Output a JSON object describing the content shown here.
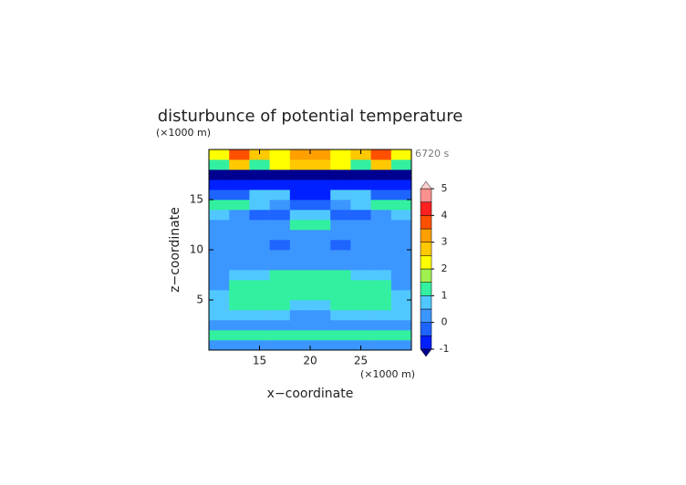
{
  "chart_data": {
    "type": "contour",
    "title": "disturbunce of potential temperature",
    "time_label": "6720 s",
    "x_label": "x−coordinate",
    "y_label": "z−coordinate",
    "x_unit": "(×1000 m)",
    "y_unit": "(×1000 m)",
    "xlim": [
      10,
      30
    ],
    "ylim": [
      0,
      20
    ],
    "xticks": [
      15,
      20,
      25
    ],
    "yticks": [
      5,
      10,
      15
    ],
    "x": [
      11,
      13,
      15,
      17,
      19,
      21,
      23,
      25,
      27,
      29
    ],
    "y": [
      0.5,
      1.5,
      2.5,
      3.5,
      4.5,
      5.5,
      6.5,
      7.5,
      8.5,
      9.5,
      10.5,
      11.5,
      12.5,
      13.5,
      14.5,
      15.5,
      16.5,
      17.5,
      18.5,
      19.5
    ],
    "z": [
      [
        0.3,
        0.3,
        0.3,
        0.3,
        0.3,
        0.3,
        0.3,
        0.3,
        0.3,
        0.3
      ],
      [
        1.2,
        1.2,
        1.2,
        1.2,
        1.2,
        1.2,
        1.2,
        1.2,
        1.2,
        1.2
      ],
      [
        0.3,
        0.3,
        0.3,
        0.3,
        0.3,
        0.3,
        0.3,
        0.3,
        0.3,
        0.3
      ],
      [
        0.7,
        0.7,
        0.7,
        0.7,
        0.3,
        0.3,
        0.7,
        0.7,
        0.7,
        0.7
      ],
      [
        0.7,
        1.2,
        1.2,
        1.2,
        0.7,
        0.7,
        1.2,
        1.2,
        1.2,
        0.7
      ],
      [
        0.7,
        1.2,
        1.2,
        1.2,
        1.2,
        1.2,
        1.2,
        1.2,
        1.2,
        0.7
      ],
      [
        0.3,
        1.2,
        1.2,
        1.2,
        1.2,
        1.2,
        1.2,
        1.2,
        1.2,
        0.3
      ],
      [
        0.3,
        0.7,
        0.7,
        1.2,
        1.2,
        1.2,
        1.2,
        0.7,
        0.7,
        0.3
      ],
      [
        0.3,
        0.3,
        0.3,
        0.3,
        0.3,
        0.3,
        0.3,
        0.3,
        0.3,
        0.3
      ],
      [
        0.3,
        0.3,
        0.3,
        0.3,
        0.3,
        0.3,
        0.3,
        0.3,
        0.3,
        0.3
      ],
      [
        0.3,
        0.3,
        0.3,
        -0.3,
        0.3,
        0.3,
        -0.3,
        0.3,
        0.3,
        0.3
      ],
      [
        0.3,
        0.3,
        0.3,
        0.3,
        0.3,
        0.3,
        0.3,
        0.3,
        0.3,
        0.3
      ],
      [
        0.3,
        0.3,
        0.3,
        0.3,
        1.2,
        1.2,
        0.3,
        0.3,
        0.3,
        0.3
      ],
      [
        0.7,
        0.3,
        -0.3,
        -0.3,
        0.7,
        0.7,
        -0.3,
        -0.3,
        0.3,
        0.7
      ],
      [
        1.2,
        1.2,
        0.7,
        0.3,
        -0.3,
        -0.3,
        0.3,
        0.7,
        1.2,
        1.2
      ],
      [
        -0.3,
        -0.3,
        0.7,
        0.7,
        -0.8,
        -0.8,
        0.7,
        0.7,
        -0.3,
        -0.3
      ],
      [
        -0.8,
        -0.8,
        -0.8,
        -0.8,
        -0.8,
        -0.8,
        -0.8,
        -0.8,
        -0.8,
        -0.8
      ],
      [
        -1.2,
        -1.2,
        -1.2,
        -1.2,
        -1.2,
        -1.2,
        -1.2,
        -1.2,
        -1.2,
        -1.2
      ],
      [
        1.2,
        2.7,
        1.2,
        2.2,
        2.7,
        2.7,
        2.2,
        1.2,
        2.7,
        1.2
      ],
      [
        2.2,
        3.7,
        2.7,
        2.2,
        3.2,
        3.2,
        2.2,
        2.7,
        3.7,
        2.2
      ]
    ],
    "levels": [
      -1,
      -0.5,
      0,
      0.5,
      1,
      1.5,
      2,
      2.5,
      3,
      3.5,
      4,
      4.5,
      5
    ],
    "colors": [
      "#000090",
      "#0020ff",
      "#1e64ff",
      "#3c96ff",
      "#50c8ff",
      "#32f0a0",
      "#a0f050",
      "#ffff00",
      "#ffc800",
      "#ffa000",
      "#ff5000",
      "#ff2020",
      "#ff9090",
      "#ffd0d0"
    ],
    "colorbar_ticks": [
      -1,
      0,
      1,
      2,
      3,
      4,
      5
    ]
  }
}
